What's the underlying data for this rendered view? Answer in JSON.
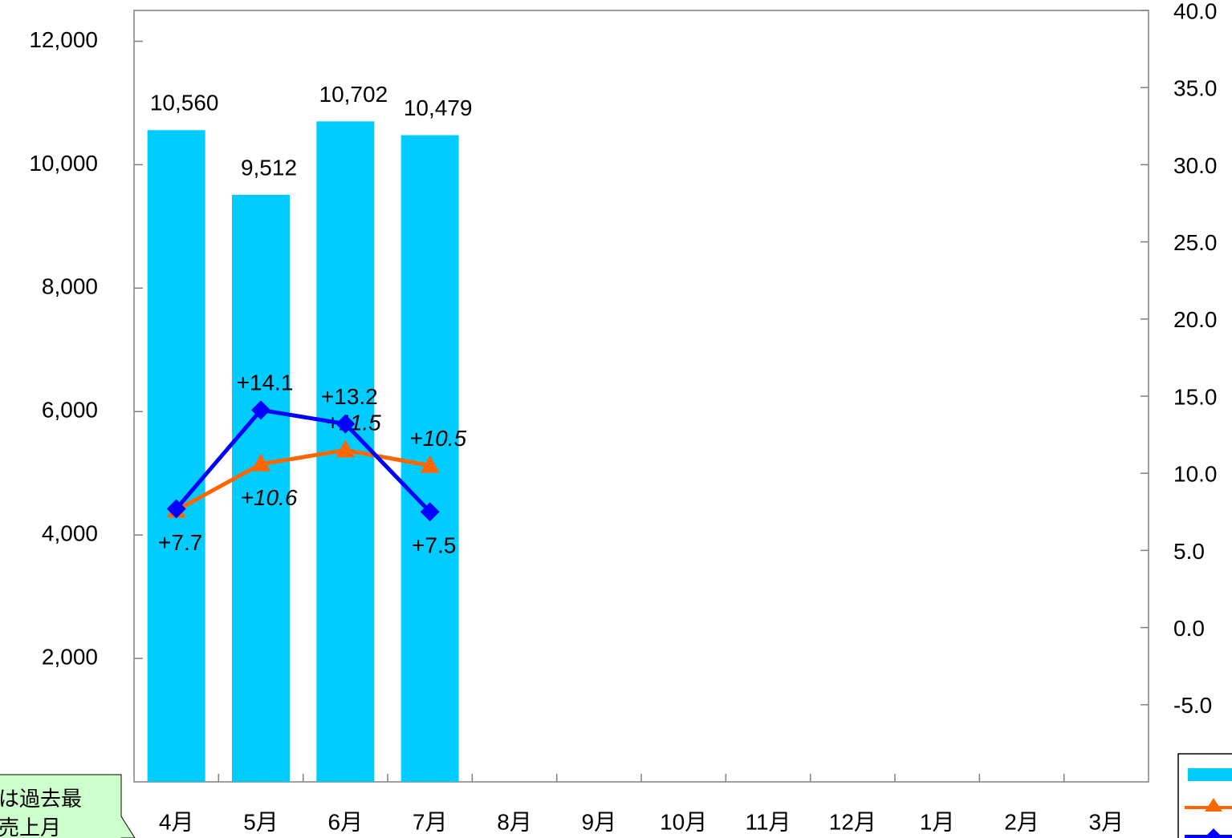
{
  "chart_data": {
    "type": "bar-line",
    "categories": [
      "4月",
      "5月",
      "6月",
      "7月",
      "8月",
      "9月",
      "10月",
      "11月",
      "12月",
      "1月",
      "2月",
      "3月"
    ],
    "series": [
      {
        "type": "bar",
        "color": "#00ccff",
        "values": [
          10560,
          9512,
          10702,
          10479,
          null,
          null,
          null,
          null,
          null,
          null,
          null,
          null
        ],
        "value_labels": [
          "10,560",
          "9,512",
          "10,702",
          "10,479",
          null,
          null,
          null,
          null,
          null,
          null,
          null,
          null
        ]
      },
      {
        "type": "line",
        "axis": "y2",
        "color": "#ff6600",
        "marker": "triangle",
        "italic": true,
        "values": [
          7.6,
          10.6,
          11.5,
          10.5,
          null,
          null,
          null,
          null,
          null,
          null,
          null,
          null
        ],
        "value_labels": [
          null,
          "+10.6",
          "+11.5",
          "+10.5",
          null,
          null,
          null,
          null,
          null,
          null,
          null,
          null
        ]
      },
      {
        "type": "line",
        "axis": "y2",
        "color": "#0000ff",
        "marker": "diamond",
        "italic": false,
        "values": [
          7.7,
          14.1,
          13.2,
          7.5,
          null,
          null,
          null,
          null,
          null,
          null,
          null,
          null
        ],
        "value_labels": [
          "+7.7",
          "+14.1",
          "+13.2",
          "+7.5",
          null,
          null,
          null,
          null,
          null,
          null,
          null,
          null
        ]
      }
    ],
    "ylim": [
      0,
      12500
    ],
    "yticks": [
      {
        "value": 2000,
        "label": "2,000"
      },
      {
        "value": 4000,
        "label": "4,000"
      },
      {
        "value": 6000,
        "label": "6,000"
      },
      {
        "value": 8000,
        "label": "8,000"
      },
      {
        "value": 10000,
        "label": "10,000"
      },
      {
        "value": 12000,
        "label": "12,000"
      }
    ],
    "y2lim": [
      -10,
      40
    ],
    "y2ticks": [
      {
        "value": -5,
        "label": "-5.0"
      },
      {
        "value": 0,
        "label": "0.0"
      },
      {
        "value": 5,
        "label": "5.0"
      },
      {
        "value": 10,
        "label": "10.0"
      },
      {
        "value": 15,
        "label": "15.0"
      },
      {
        "value": 20,
        "label": "20.0"
      },
      {
        "value": 25,
        "label": "25.0"
      },
      {
        "value": 30,
        "label": "30.0"
      },
      {
        "value": 35,
        "label": "35.0"
      },
      {
        "value": 40,
        "label": "40.0"
      }
    ],
    "annotations": [
      "は過去最",
      "売上月"
    ]
  }
}
